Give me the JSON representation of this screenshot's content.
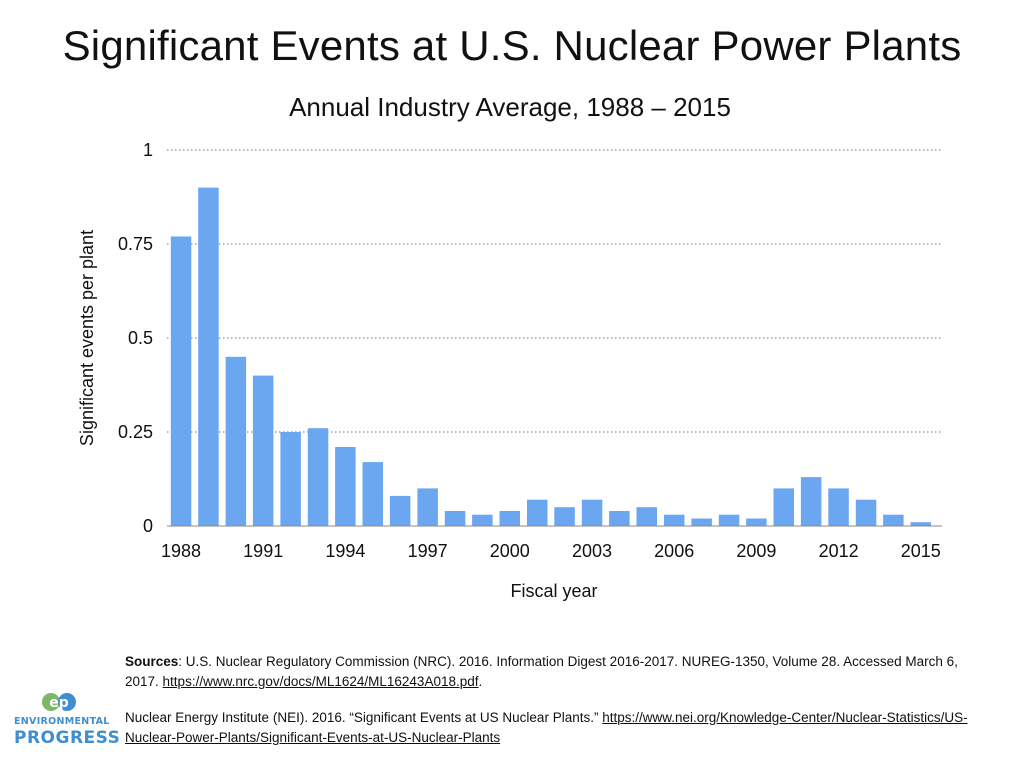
{
  "chart_data": {
    "type": "bar",
    "title": "Significant Events at U.S. Nuclear Power Plants",
    "subtitle": "Annual Industry Average, 1988 – 2015",
    "xlabel": "Fiscal year",
    "ylabel": "Significant events per plant",
    "ylim": [
      0,
      1
    ],
    "yticks": [
      0,
      0.25,
      0.5,
      0.75,
      1
    ],
    "ytick_labels": [
      "0",
      "0.25",
      "0.5",
      "0.75",
      "1"
    ],
    "xtick_labels": [
      "1988",
      "1991",
      "1994",
      "1997",
      "2000",
      "2003",
      "2006",
      "2009",
      "2012",
      "2015"
    ],
    "grid": "horizontal dotted",
    "bar_color": "#6aa7f0",
    "categories": [
      "1988",
      "1989",
      "1990",
      "1991",
      "1992",
      "1993",
      "1994",
      "1995",
      "1996",
      "1997",
      "1998",
      "1999",
      "2000",
      "2001",
      "2002",
      "2003",
      "2004",
      "2005",
      "2006",
      "2007",
      "2008",
      "2009",
      "2010",
      "2011",
      "2012",
      "2013",
      "2014",
      "2015"
    ],
    "values": [
      0.77,
      0.9,
      0.45,
      0.4,
      0.25,
      0.26,
      0.21,
      0.17,
      0.08,
      0.1,
      0.04,
      0.03,
      0.04,
      0.07,
      0.05,
      0.07,
      0.04,
      0.05,
      0.03,
      0.02,
      0.03,
      0.02,
      0.1,
      0.13,
      0.1,
      0.07,
      0.03,
      0.01
    ]
  },
  "sources": {
    "label": "Sources",
    "nrc_text": ": U.S. Nuclear Regulatory Commission (NRC). 2016. Information Digest 2016-2017. NUREG-1350, Volume 28. Accessed March 6, 2017. ",
    "nrc_link": "https://www.nrc.gov/docs/ML1624/ML16243A018.pdf",
    "nrc_end": ".",
    "nei_text": "Nuclear Energy Institute (NEI). 2016. “Significant Events at US Nuclear Plants.” ",
    "nei_link": "https://www.nei.org/Knowledge-Center/Nuclear-Statistics/US-Nuclear-Power-Plants/Significant-Events-at-US-Nuclear-Plants"
  },
  "logo": {
    "mark": "ep",
    "line1": "ENVIRONMENTAL",
    "line2": "PROGRESS",
    "color": "#3f8fd0"
  }
}
